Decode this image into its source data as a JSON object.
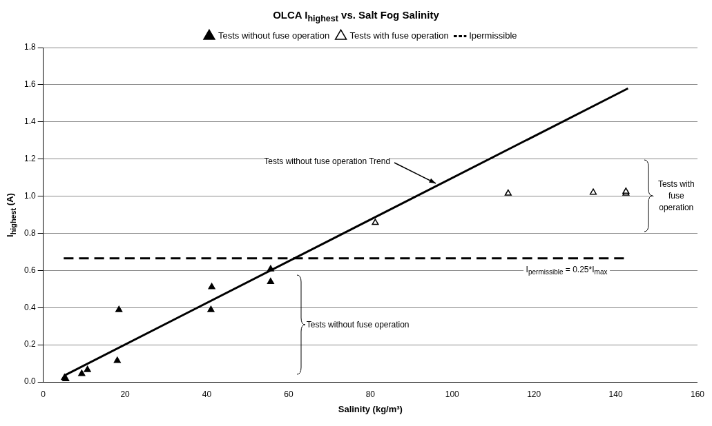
{
  "chart_data": {
    "type": "scatter",
    "title": "OLCA I$_{highest}$ vs. Salt Fog Salinity",
    "xlabel": "Salinity (kg/m³)",
    "ylabel": "I$_{highest}$ (A)",
    "xlim": [
      0,
      160
    ],
    "xticks": [
      0,
      20,
      40,
      60,
      80,
      100,
      120,
      140,
      160
    ],
    "ylim": [
      0,
      1.8
    ],
    "yticks": [
      {
        "value": 0,
        "label": "0.0"
      },
      {
        "value": 0.2,
        "label": "0.2"
      },
      {
        "value": 0.4,
        "label": "0.4"
      },
      {
        "value": 0.6,
        "label": "0.6"
      },
      {
        "value": 0.8,
        "label": "0.8"
      },
      {
        "value": 1,
        "label": "1.0"
      },
      {
        "value": 1.2,
        "label": "1.2"
      },
      {
        "value": 1.4,
        "label": "1.4"
      },
      {
        "value": 1.6,
        "label": "1.6"
      },
      {
        "value": 1.8,
        "label": "1.8"
      }
    ],
    "grid": "y",
    "legend": "top",
    "series": [
      {
        "name": "Tests without fuse operation",
        "type": "scatter",
        "marker": "triangle",
        "color": "#000000",
        "x": [
          5.2,
          5.5,
          9.4,
          10.8,
          18.1,
          18.5,
          41.0,
          41.2,
          55.6,
          55.6
        ],
        "values": [
          0.022,
          0.016,
          0.044,
          0.065,
          0.114,
          0.388,
          0.388,
          0.511,
          0.539,
          0.607
        ]
      },
      {
        "name": "Tests with fuse operation",
        "type": "scatter",
        "marker": "triangle",
        "color": "#ffffff",
        "x": [
          81.2,
          113.7,
          134.5,
          142.5,
          142.5
        ],
        "values": [
          0.857,
          1.015,
          1.02,
          1.015,
          1.025
        ]
      },
      {
        "name": "Ipermissible",
        "type": "line",
        "line_style": "dashed",
        "color": "#000000",
        "x": [
          5,
          142
        ],
        "values": [
          0.665,
          0.665
        ]
      },
      {
        "type": "line",
        "line_style": "solid",
        "color": "#000000",
        "x": [
          5.2,
          143
        ],
        "values": [
          0.035,
          1.58
        ]
      }
    ],
    "annotations": [
      {
        "text": "Tests without fuse operation Trend",
        "x": 96,
        "y": 1.07
      },
      "Tests with fuse operation",
      "Tests without fuse operation",
      "I$_{permissible}$ = 0.25*I$_{max}$"
    ]
  }
}
